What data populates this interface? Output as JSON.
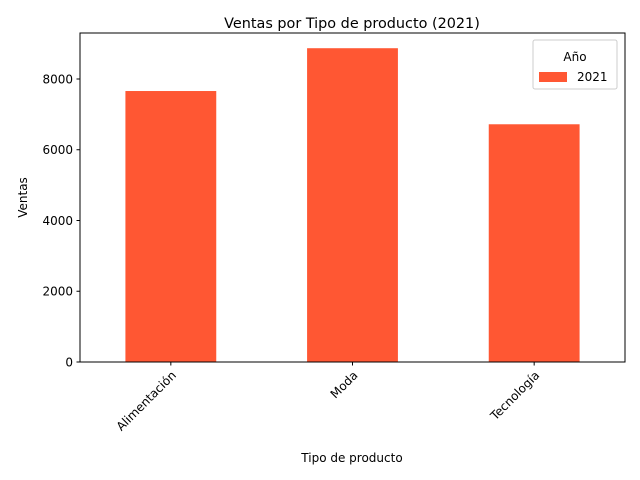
{
  "chart_data": {
    "type": "bar",
    "title": "Ventas por Tipo de producto (2021)",
    "xlabel": "Tipo de producto",
    "ylabel": "Ventas",
    "categories": [
      "Alimentación",
      "Moda",
      "Tecnología"
    ],
    "series": [
      {
        "name": "2021",
        "values": [
          7660,
          8870,
          6720
        ],
        "color": "#ff5733"
      }
    ],
    "ylim": [
      0,
      9300
    ],
    "yticks": [
      0,
      2000,
      4000,
      6000,
      8000
    ],
    "grid": false,
    "legend": {
      "title": "Año",
      "placement": "top-right"
    }
  }
}
